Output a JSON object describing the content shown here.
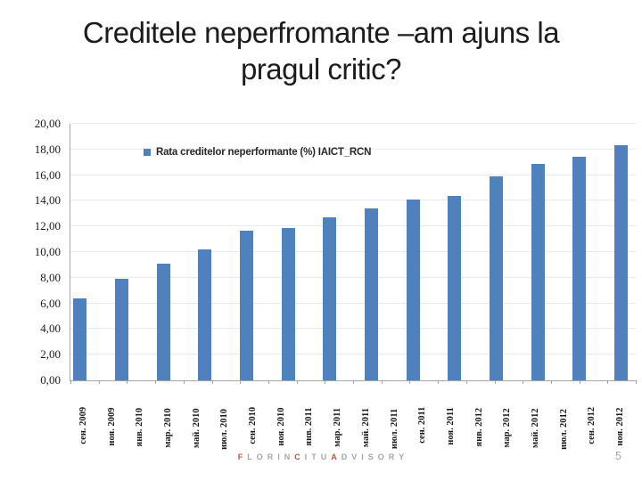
{
  "title": {
    "line1": "Creditele neperfromante –am ajuns la",
    "line2": "pragul critic?"
  },
  "chart_data": {
    "type": "bar",
    "title": "",
    "legend": "Rata creditelor neperformante (%) IAICT_RCN",
    "ylim": [
      0,
      20
    ],
    "ytick_step": 2,
    "grid": true,
    "legend_position": "inside-top-left",
    "y_tick_labels": [
      "0,00",
      "2,00",
      "4,00",
      "6,00",
      "8,00",
      "10,00",
      "12,00",
      "14,00",
      "16,00",
      "18,00",
      "20,00"
    ],
    "x_tick_labels": [
      "сен. 2009",
      "ноя. 2009",
      "янв. 2010",
      "мар. 2010",
      "май. 2010",
      "июл. 2010",
      "сен. 2010",
      "ноя. 2010",
      "янв. 2011",
      "мар. 2011",
      "май. 2011",
      "июл. 2011",
      "сен. 2011",
      "ноя. 2011",
      "янв. 2012",
      "мар. 2012",
      "май. 2012",
      "июл. 2012",
      "сен. 2012",
      "ноя. 2012"
    ],
    "values": [
      6.4,
      7.9,
      9.1,
      10.2,
      11.7,
      11.9,
      12.7,
      13.4,
      14.1,
      14.4,
      15.9,
      16.9,
      17.4,
      18.3
    ]
  },
  "footer": {
    "letters": [
      {
        "ch": "F",
        "red": true
      },
      {
        "ch": "L",
        "red": false
      },
      {
        "ch": "O",
        "red": false
      },
      {
        "ch": "R",
        "red": false
      },
      {
        "ch": "I",
        "red": false
      },
      {
        "ch": "N",
        "red": false
      },
      {
        "ch": "C",
        "red": true
      },
      {
        "ch": "I",
        "red": false
      },
      {
        "ch": "T",
        "red": false
      },
      {
        "ch": "U",
        "red": false
      },
      {
        "ch": "A",
        "red": true
      },
      {
        "ch": "D",
        "red": false
      },
      {
        "ch": "V",
        "red": false
      },
      {
        "ch": "I",
        "red": false
      },
      {
        "ch": "S",
        "red": false
      },
      {
        "ch": "O",
        "red": false
      },
      {
        "ch": "R",
        "red": false
      },
      {
        "ch": "Y",
        "red": false
      }
    ],
    "page_number": "5"
  },
  "colors": {
    "bar": "#4F81BD",
    "grid": "#E7EAF0",
    "axis": "#A6A6A6",
    "footer_red": "#C0504D",
    "footer_gray": "#A6A6A6"
  }
}
